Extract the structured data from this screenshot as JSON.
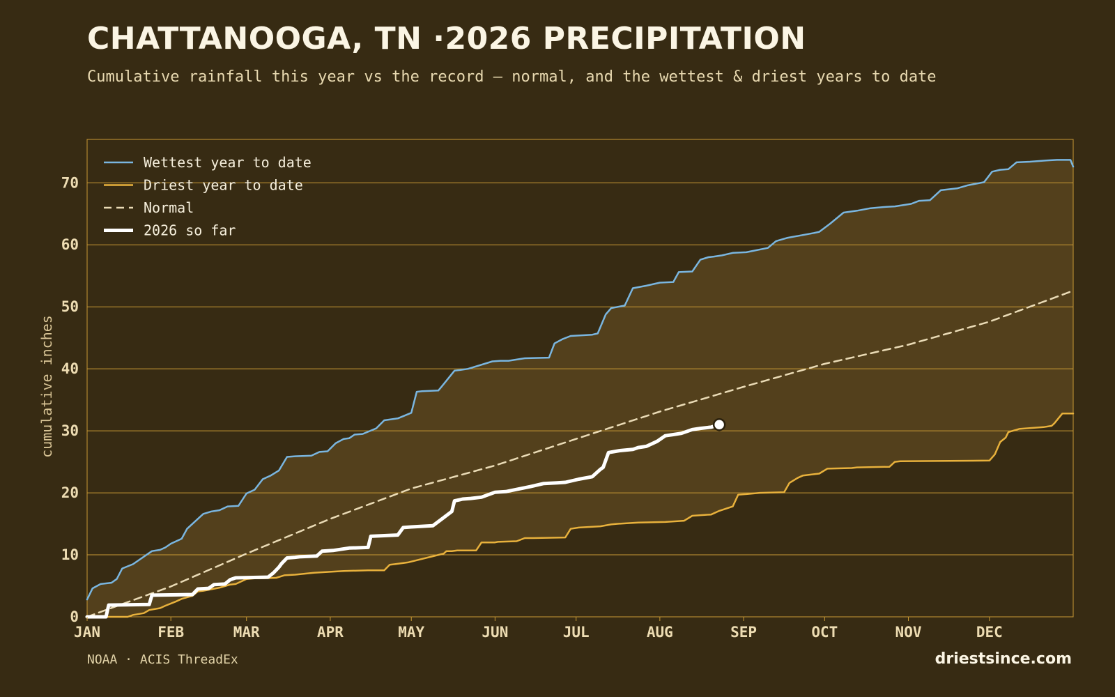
{
  "title": "CHATTANOOGA, TN ·2026 PRECIPITATION",
  "subtitle": "Cumulative rainfall this year vs the record — normal, and the wettest & driest years to date",
  "footer": {
    "source": "NOAA · ACIS ThreadEx",
    "brand": "driestsince.com"
  },
  "colors": {
    "background": "#372b13",
    "band": "#53401c",
    "grid": "#c99a35",
    "wettest": "#7ab6e0",
    "driest": "#e8b13c",
    "normal": "#eadbb6",
    "current": "#ffffff"
  },
  "chart_data": {
    "type": "line",
    "ylabel": "cumulative inches",
    "ylim": [
      0,
      77
    ],
    "yticks": [
      0,
      10,
      20,
      30,
      40,
      50,
      60,
      70
    ],
    "months": [
      "JAN",
      "FEB",
      "MAR",
      "APR",
      "MAY",
      "JUN",
      "JUL",
      "AUG",
      "SEP",
      "OCT",
      "NOV",
      "DEC"
    ],
    "month_start_days": [
      1,
      32,
      60,
      91,
      121,
      152,
      182,
      213,
      244,
      274,
      305,
      335
    ],
    "xlim": [
      1,
      366
    ],
    "grid": "horizontal",
    "legend_position": "top-left",
    "band_between": [
      "Wettest year to date",
      "Driest year to date"
    ],
    "series": [
      {
        "name": "Wettest year to date",
        "style": "solid",
        "x": [
          1,
          3,
          6,
          10,
          12,
          14,
          18,
          25,
          28,
          30,
          32,
          36,
          38,
          42,
          44,
          47,
          50,
          53,
          57,
          60,
          63,
          66,
          69,
          72,
          75,
          78,
          84,
          87,
          90,
          93,
          96,
          98,
          100,
          103,
          108,
          111,
          116,
          121,
          123,
          125,
          131,
          132,
          137,
          139,
          142,
          151,
          154,
          157,
          163,
          172,
          174,
          177,
          180,
          188,
          190,
          193,
          195,
          200,
          203,
          208,
          213,
          218,
          220,
          225,
          228,
          231,
          233,
          236,
          240,
          245,
          253,
          256,
          260,
          270,
          272,
          276,
          281,
          286,
          291,
          296,
          300,
          306,
          309,
          313,
          317,
          323,
          327,
          333,
          336,
          339,
          342,
          345,
          350,
          356,
          360,
          365,
          366
        ],
        "y": [
          2.8,
          4.6,
          5.3,
          5.5,
          6.1,
          7.8,
          8.5,
          10.6,
          10.8,
          11.2,
          11.8,
          12.6,
          14.2,
          15.8,
          16.6,
          17.0,
          17.2,
          17.8,
          17.9,
          19.9,
          20.5,
          22.2,
          22.8,
          23.6,
          25.8,
          25.9,
          26.0,
          26.6,
          26.7,
          28.0,
          28.7,
          28.8,
          29.4,
          29.5,
          30.4,
          31.7,
          32.0,
          32.9,
          36.3,
          36.4,
          36.5,
          37.0,
          39.7,
          39.8,
          40.0,
          41.2,
          41.3,
          41.3,
          41.7,
          41.8,
          44.1,
          44.8,
          45.3,
          45.5,
          45.7,
          48.8,
          49.8,
          50.2,
          53.0,
          53.4,
          53.9,
          54.0,
          55.6,
          55.7,
          57.6,
          58.0,
          58.1,
          58.3,
          58.7,
          58.8,
          59.5,
          60.6,
          61.1,
          61.9,
          62.1,
          63.4,
          65.2,
          65.5,
          65.9,
          66.1,
          66.2,
          66.6,
          67.1,
          67.2,
          68.8,
          69.1,
          69.6,
          70.1,
          71.8,
          72.1,
          72.2,
          73.3,
          73.4,
          73.6,
          73.7,
          73.7,
          72.6
        ]
      },
      {
        "name": "Driest year to date",
        "style": "solid",
        "x": [
          1,
          16,
          18,
          22,
          24,
          28,
          30,
          34,
          36,
          40,
          42,
          44,
          50,
          54,
          56,
          60,
          63,
          66,
          71,
          74,
          78,
          85,
          92,
          96,
          105,
          111,
          113,
          115,
          120,
          133,
          134,
          136,
          138,
          145,
          147,
          150,
          152,
          153,
          160,
          163,
          166,
          178,
          180,
          183,
          191,
          195,
          197,
          205,
          215,
          222,
          225,
          232,
          235,
          240,
          242,
          245,
          250,
          259,
          261,
          264,
          266,
          270,
          272,
          275,
          284,
          286,
          298,
          300,
          302,
          335,
          337,
          339,
          341,
          342,
          346,
          355,
          358,
          359,
          362,
          366
        ],
        "y": [
          0,
          0,
          0.3,
          0.6,
          1.1,
          1.4,
          1.8,
          2.5,
          2.9,
          3.4,
          4.1,
          4.2,
          4.7,
          5.2,
          5.3,
          6.1,
          6.2,
          6.2,
          6.3,
          6.7,
          6.8,
          7.1,
          7.3,
          7.4,
          7.5,
          7.5,
          8.4,
          8.5,
          8.8,
          10.2,
          10.6,
          10.6,
          10.7,
          10.7,
          12.0,
          12.0,
          12.0,
          12.1,
          12.2,
          12.7,
          12.7,
          12.8,
          14.2,
          14.4,
          14.6,
          14.9,
          15.0,
          15.2,
          15.3,
          15.5,
          16.3,
          16.5,
          17.1,
          17.8,
          19.7,
          19.8,
          20.0,
          20.1,
          21.6,
          22.4,
          22.8,
          23.0,
          23.1,
          23.9,
          24.0,
          24.1,
          24.2,
          25.0,
          25.1,
          25.2,
          26.2,
          28.2,
          28.9,
          29.8,
          30.3,
          30.6,
          30.8,
          31.2,
          32.8,
          32.8
        ]
      },
      {
        "name": "Normal",
        "style": "dashed",
        "x": [
          1,
          32,
          60,
          91,
          121,
          152,
          182,
          213,
          244,
          274,
          305,
          335,
          366
        ],
        "y": [
          0,
          4.9,
          10.2,
          15.8,
          20.7,
          24.4,
          28.7,
          33.1,
          37.1,
          40.8,
          43.9,
          47.6,
          52.6
        ]
      },
      {
        "name": "2026 so far",
        "style": "solid-thick",
        "x": [
          1,
          8,
          9,
          24,
          25,
          40,
          42,
          46,
          48,
          52,
          54,
          56,
          68,
          70,
          72,
          73,
          75,
          78,
          80,
          86,
          88,
          92,
          98,
          105,
          106,
          116,
          118,
          121,
          125,
          129,
          136,
          137,
          139,
          140,
          143,
          147,
          152,
          156,
          165,
          170,
          175,
          178,
          183,
          188,
          191,
          192,
          194,
          198,
          203,
          205,
          208,
          212,
          215,
          218,
          221,
          225,
          228,
          232,
          235
        ],
        "y": [
          0,
          0,
          1.9,
          2.0,
          3.5,
          3.6,
          4.5,
          4.6,
          5.2,
          5.3,
          6.0,
          6.3,
          6.4,
          7.1,
          8.0,
          8.6,
          9.5,
          9.6,
          9.7,
          9.8,
          10.6,
          10.7,
          11.1,
          11.2,
          13.0,
          13.2,
          14.4,
          14.5,
          14.6,
          14.7,
          17.0,
          18.7,
          18.9,
          19.0,
          19.1,
          19.3,
          20.1,
          20.2,
          21.0,
          21.5,
          21.6,
          21.7,
          22.2,
          22.6,
          23.8,
          24.1,
          26.5,
          26.8,
          27.0,
          27.3,
          27.5,
          28.3,
          29.2,
          29.4,
          29.6,
          30.2,
          30.4,
          30.6,
          31.0
        ]
      }
    ],
    "current_point": {
      "x": 235,
      "y": 31.0
    }
  }
}
